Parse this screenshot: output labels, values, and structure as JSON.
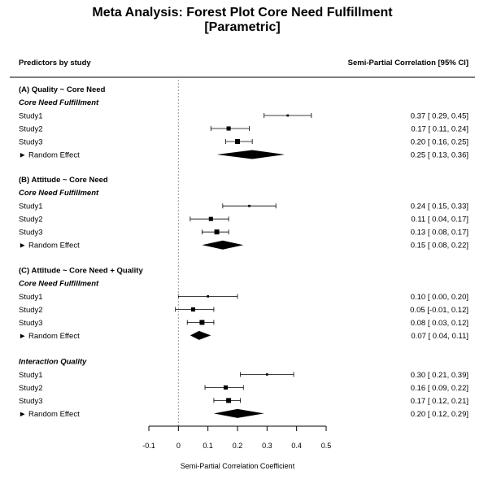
{
  "chart_data": {
    "type": "forest",
    "title_line1": "Meta Analysis: Forest Plot Core Need Fulfillment",
    "title_line2": "[Parametric]",
    "left_header": "Predictors by study",
    "right_header": "Semi-Partial Correlation [95% CI]",
    "xlabel": "Semi-Partial Correlation Coefficient",
    "xlim": [
      -0.1,
      0.5
    ],
    "xticks": [
      -0.1,
      0,
      0.1,
      0.2,
      0.3,
      0.4,
      0.5
    ],
    "xtick_labels": [
      "-0.1",
      "0",
      "0.1",
      "0.2",
      "0.3",
      "0.4",
      "0.5"
    ],
    "reference_line": 0,
    "sections": [
      {
        "title": "(A) Quality ~ Core Need",
        "groups": [
          {
            "title": "Core Need Fulfillment",
            "studies": [
              {
                "label": "Study1",
                "est": 0.37,
                "lo": 0.29,
                "hi": 0.45,
                "text": "0.37 [ 0.29, 0.45]",
                "weight": 0.2
              },
              {
                "label": "Study2",
                "est": 0.17,
                "lo": 0.11,
                "hi": 0.24,
                "text": "0.17 [ 0.11, 0.24]",
                "weight": 0.6
              },
              {
                "label": "Study3",
                "est": 0.2,
                "lo": 0.16,
                "hi": 0.25,
                "text": "0.20 [ 0.16, 0.25]",
                "weight": 0.75
              }
            ],
            "summary": {
              "label": "► Random Effect",
              "est": 0.25,
              "lo": 0.13,
              "hi": 0.36,
              "text": "0.25 [ 0.13, 0.36]"
            }
          }
        ]
      },
      {
        "title": "(B) Attitude ~ Core Need",
        "groups": [
          {
            "title": "Core Need Fulfillment",
            "studies": [
              {
                "label": "Study1",
                "est": 0.24,
                "lo": 0.15,
                "hi": 0.33,
                "text": "0.24 [ 0.15, 0.33]",
                "weight": 0.2
              },
              {
                "label": "Study2",
                "est": 0.11,
                "lo": 0.04,
                "hi": 0.17,
                "text": "0.11 [ 0.04, 0.17]",
                "weight": 0.6
              },
              {
                "label": "Study3",
                "est": 0.13,
                "lo": 0.08,
                "hi": 0.17,
                "text": "0.13 [ 0.08, 0.17]",
                "weight": 0.75
              }
            ],
            "summary": {
              "label": "► Random Effect",
              "est": 0.15,
              "lo": 0.08,
              "hi": 0.22,
              "text": "0.15 [ 0.08, 0.22]"
            }
          }
        ]
      },
      {
        "title": "(C) Attitude ~ Core Need + Quality",
        "groups": [
          {
            "title": "Core Need Fulfillment",
            "studies": [
              {
                "label": "Study1",
                "est": 0.1,
                "lo": 0.0,
                "hi": 0.2,
                "text": "0.10 [ 0.00, 0.20]",
                "weight": 0.2
              },
              {
                "label": "Study2",
                "est": 0.05,
                "lo": -0.01,
                "hi": 0.12,
                "text": "0.05 [-0.01, 0.12]",
                "weight": 0.6
              },
              {
                "label": "Study3",
                "est": 0.08,
                "lo": 0.03,
                "hi": 0.12,
                "text": "0.08 [ 0.03, 0.12]",
                "weight": 0.75
              }
            ],
            "summary": {
              "label": "► Random Effect",
              "est": 0.07,
              "lo": 0.04,
              "hi": 0.11,
              "text": "0.07 [ 0.04, 0.11]"
            }
          },
          {
            "title": "Interaction Quality",
            "studies": [
              {
                "label": "Study1",
                "est": 0.3,
                "lo": 0.21,
                "hi": 0.39,
                "text": "0.30 [ 0.21, 0.39]",
                "weight": 0.2
              },
              {
                "label": "Study2",
                "est": 0.16,
                "lo": 0.09,
                "hi": 0.22,
                "text": "0.16 [ 0.09, 0.22]",
                "weight": 0.6
              },
              {
                "label": "Study3",
                "est": 0.17,
                "lo": 0.12,
                "hi": 0.21,
                "text": "0.17 [ 0.12, 0.21]",
                "weight": 0.75
              }
            ],
            "summary": {
              "label": "► Random Effect",
              "est": 0.2,
              "lo": 0.12,
              "hi": 0.29,
              "text": "0.20 [ 0.12, 0.29]"
            }
          }
        ]
      }
    ]
  }
}
